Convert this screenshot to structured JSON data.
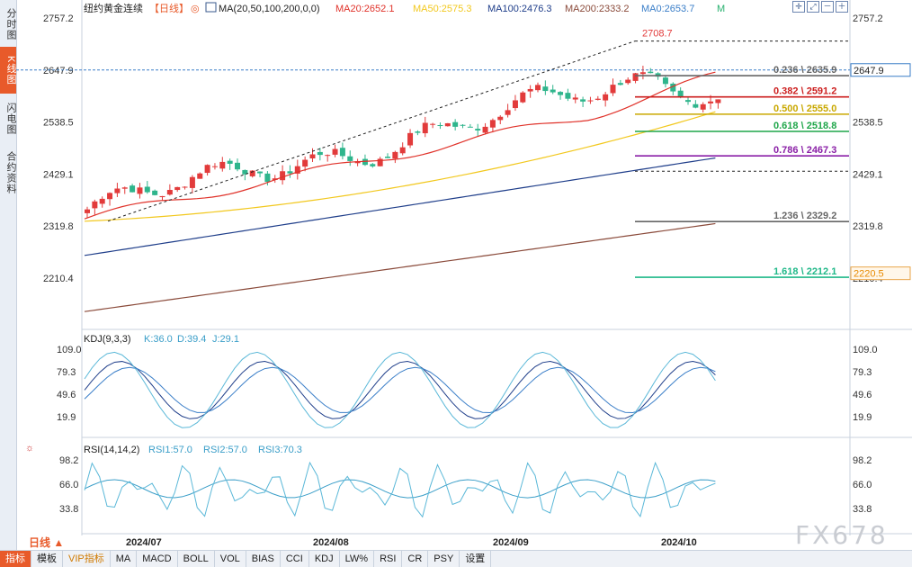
{
  "sidebar": {
    "tabs": [
      {
        "label": "分时图",
        "active": false
      },
      {
        "label": "K线图",
        "active": true
      },
      {
        "label": "闪电图",
        "active": false
      },
      {
        "label": "合约资料",
        "active": false
      }
    ]
  },
  "header": {
    "instrument": "纽约黄金连续",
    "period": "【日线】",
    "ma_params": "MA(20,50,100,200,0,0)",
    "legend": [
      {
        "label": "MA20:2652.1",
        "color": "#e0322a"
      },
      {
        "label": "MA50:2575.3",
        "color": "#f2c81e"
      },
      {
        "label": "MA100:2476.3",
        "color": "#1f3e8a"
      },
      {
        "label": "MA200:2333.2",
        "color": "#8a4a3a"
      },
      {
        "label": "MA0:2653.7",
        "color": "#3a7ec8"
      },
      {
        "label": "M",
        "color": "#27b06e"
      }
    ]
  },
  "price_axis": {
    "ticks": [
      "2757.2",
      "2647.9",
      "2538.5",
      "2429.1",
      "2319.8",
      "2210.4"
    ],
    "current": "2647.9",
    "low_label": "2220.5"
  },
  "fib": {
    "high_label": "2708.7",
    "levels": [
      {
        "label": "0.236 \\ 2635.9",
        "color": "#666666"
      },
      {
        "label": "0.382 \\ 2591.2",
        "color": "#cc1e1e"
      },
      {
        "label": "0.500 \\ 2555.0",
        "color": "#c9a800"
      },
      {
        "label": "0.618 \\ 2518.8",
        "color": "#1fa64a"
      },
      {
        "label": "0.786 \\ 2467.3",
        "color": "#8a1fa6"
      },
      {
        "label": "1.236 \\ 2329.2",
        "color": "#666666"
      },
      {
        "label": "1.618 \\ 2212.1",
        "color": "#1fb888"
      }
    ]
  },
  "kdj": {
    "title": "KDJ(9,3,3)",
    "k": "K:36.0",
    "d": "D:39.4",
    "j": "J:29.1",
    "ticks": [
      "109.0",
      "79.3",
      "49.6",
      "19.9"
    ]
  },
  "rsi": {
    "title": "RSI(14,14,2)",
    "r1": "RSI1:57.0",
    "r2": "RSI2:57.0",
    "r3": "RSI3:70.3",
    "ticks": [
      "98.2",
      "66.0",
      "33.8"
    ]
  },
  "dates": [
    "2024/07",
    "2024/08",
    "2024/09",
    "2024/10"
  ],
  "timeframe": "日线",
  "bottom_tabs": [
    "指标",
    "模板",
    "VIP指标",
    "MA",
    "MACD",
    "BOLL",
    "VOL",
    "BIAS",
    "CCI",
    "KDJ",
    "LW%",
    "RSI",
    "CR",
    "PSY",
    "设置"
  ],
  "watermark": "FX678",
  "colors": {
    "up": "#e23b3b",
    "down": "#2fb58c",
    "accent": "#e85a2a"
  }
}
